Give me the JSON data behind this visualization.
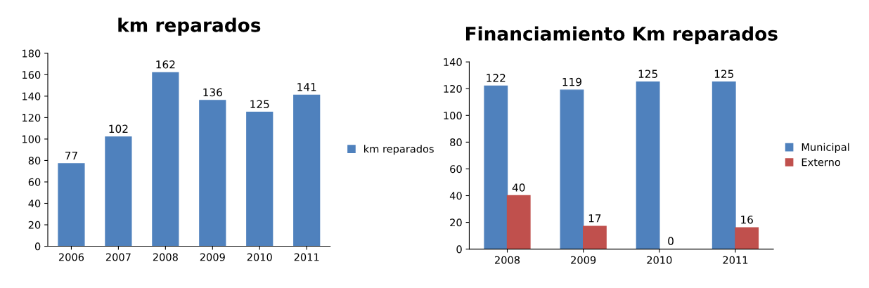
{
  "chart_data": [
    {
      "type": "bar",
      "title": "km reparados",
      "categories": [
        "2006",
        "2007",
        "2008",
        "2009",
        "2010",
        "2011"
      ],
      "series": [
        {
          "name": "km reparados",
          "color": "#4f81bd",
          "values": [
            77,
            102,
            162,
            136,
            125,
            141
          ]
        }
      ],
      "ylim": [
        0,
        180
      ],
      "yticks": [
        0,
        20,
        40,
        60,
        80,
        100,
        120,
        140,
        160,
        180
      ],
      "data_labels": true,
      "legend": "right"
    },
    {
      "type": "bar",
      "title": "Financiamiento Km reparados",
      "categories": [
        "2008",
        "2009",
        "2010",
        "2011"
      ],
      "series": [
        {
          "name": "Municipal",
          "color": "#4f81bd",
          "values": [
            122,
            119,
            125,
            125
          ]
        },
        {
          "name": "Externo",
          "color": "#c0504d",
          "values": [
            40,
            17,
            0,
            16
          ]
        }
      ],
      "ylim": [
        0,
        140
      ],
      "yticks": [
        0,
        20,
        40,
        60,
        80,
        100,
        120,
        140
      ],
      "data_labels": true,
      "legend": "right"
    }
  ]
}
